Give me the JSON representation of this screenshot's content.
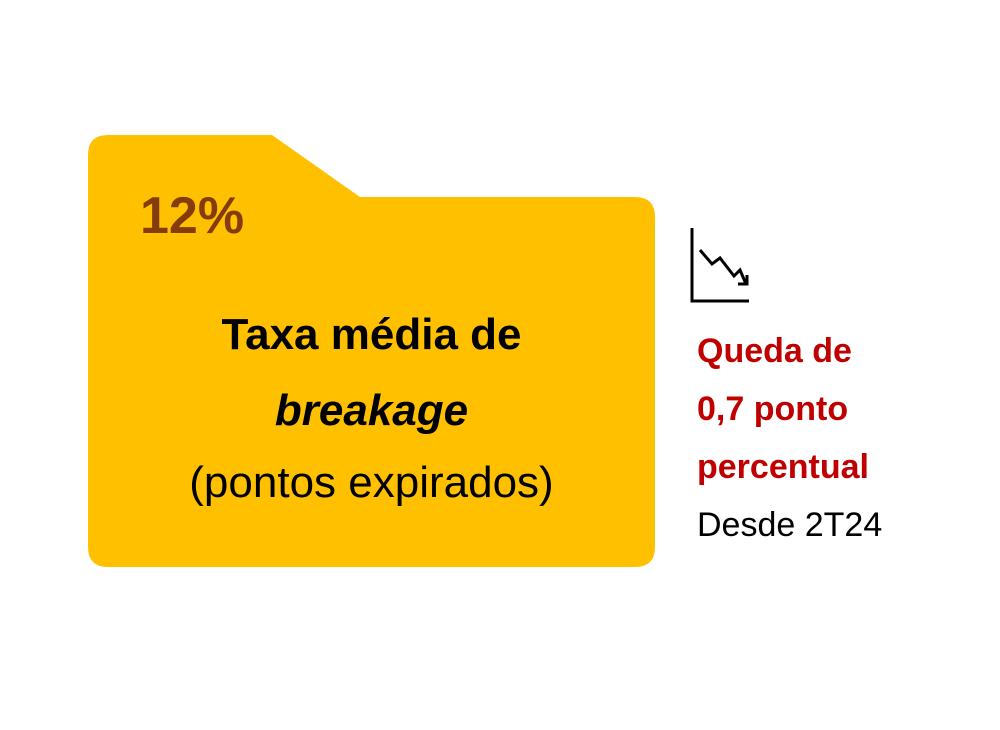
{
  "card": {
    "value": "12%",
    "label_lines": [
      "Taxa média de",
      "breakage",
      "(pontos expirados)"
    ]
  },
  "note": {
    "highlight_lines": [
      "Queda de",
      "0,7 ponto",
      "percentual"
    ],
    "since": "Desde 2T24"
  }
}
